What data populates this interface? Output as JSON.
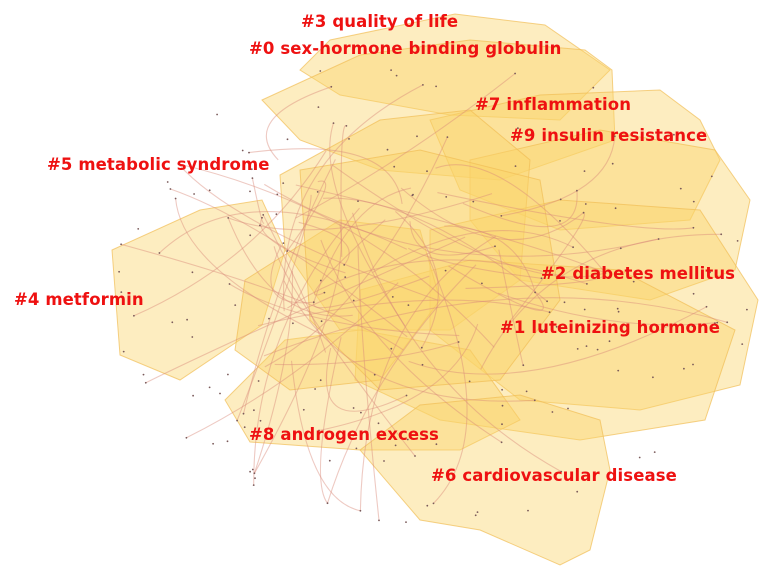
{
  "colors": {
    "hull_fill": "#fbd56a",
    "hull_stroke": "#f1be55",
    "label": "#ee1111",
    "edge": "#d98a7a",
    "node": "#7a5a5a",
    "background": "#ffffff"
  },
  "clusters": [
    {
      "id": "c3",
      "label": "#3 quality of life"
    },
    {
      "id": "c0",
      "label": "#0 sex-hormone binding globulin"
    },
    {
      "id": "c7",
      "label": "#7 inflammation"
    },
    {
      "id": "c9",
      "label": "#9 insulin resistance"
    },
    {
      "id": "c5",
      "label": "#5 metabolic syndrome"
    },
    {
      "id": "c2",
      "label": "#2 diabetes mellitus"
    },
    {
      "id": "c4",
      "label": "#4 metformin"
    },
    {
      "id": "c1",
      "label": "#1 luteinizing hormone"
    },
    {
      "id": "c8",
      "label": "#8 androgen excess"
    },
    {
      "id": "c6",
      "label": "#6 cardiovascular disease"
    }
  ]
}
